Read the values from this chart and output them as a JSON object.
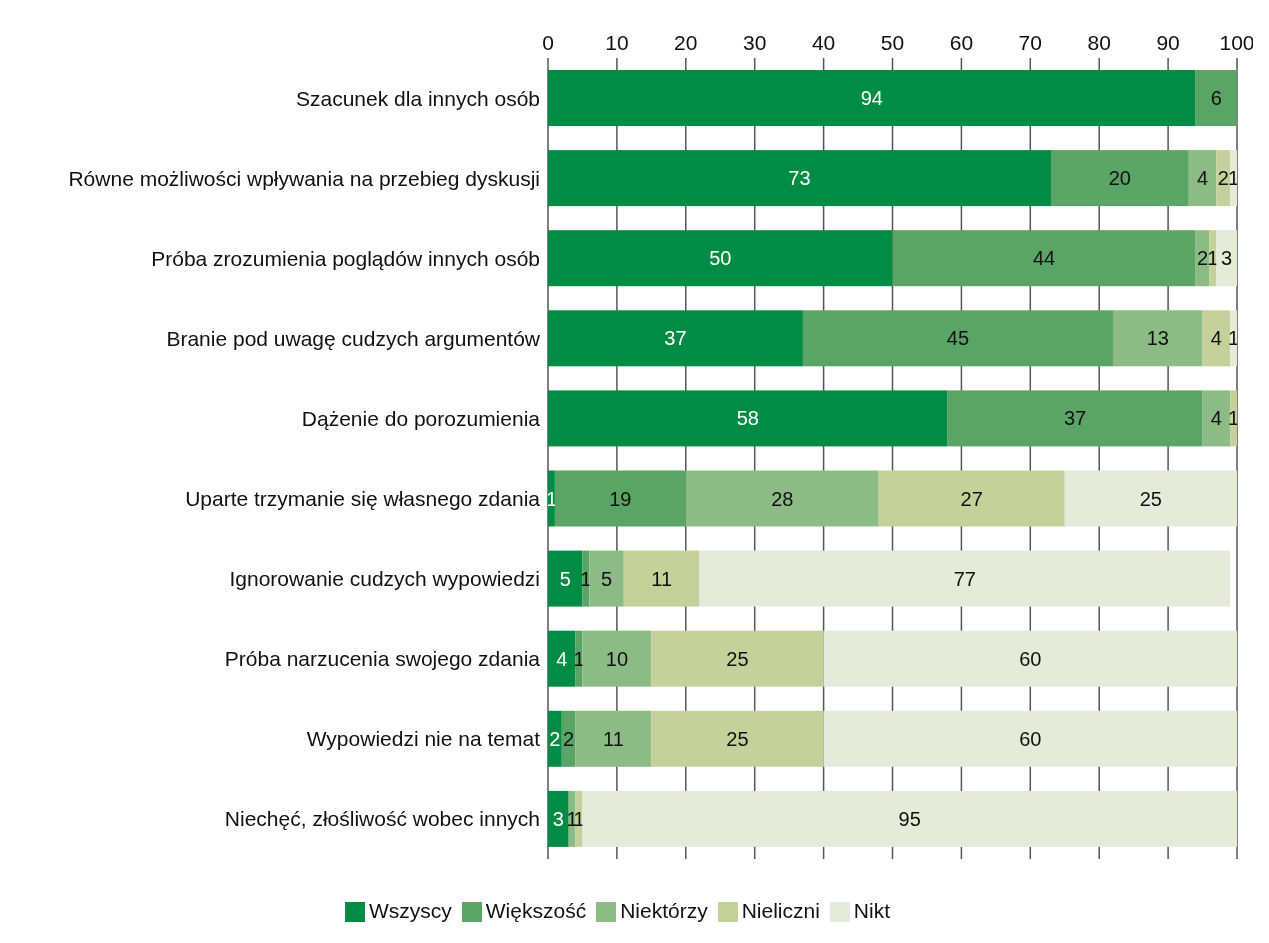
{
  "chart_data": {
    "type": "bar",
    "orientation": "horizontal",
    "stacked": true,
    "categories": [
      "Szacunek dla innych osób",
      "Równe możliwości wpływania na przebieg dyskusji",
      "Próba zrozumienia poglądów innych osób",
      "Branie pod uwagę cudzych argumentów",
      "Dążenie do porozumienia",
      "Uparte trzymanie się własnego zdania",
      "Ignorowanie cudzych wypowiedzi",
      "Próba narzucenia swojego zdania",
      "Wypowiedzi nie na temat",
      "Niechęć, złośliwość wobec innych"
    ],
    "series": [
      {
        "name": "Wszyscy",
        "color": "#008c44",
        "values": [
          94,
          73,
          50,
          37,
          58,
          1,
          5,
          4,
          2,
          3
        ],
        "value_labels": [
          "94",
          "73",
          "50",
          "37",
          "58",
          "1",
          "5",
          "4",
          "2",
          "3"
        ]
      },
      {
        "name": "Większość",
        "color": "#5aa466",
        "values": [
          6,
          20,
          44,
          45,
          37,
          19,
          1,
          1,
          2,
          0
        ],
        "value_labels": [
          "6",
          "20",
          "44",
          "45",
          "37",
          "19",
          "1",
          "1",
          "2",
          null
        ]
      },
      {
        "name": "Niektórzy",
        "color": "#8cbb86",
        "values": [
          0,
          4,
          2,
          13,
          4,
          28,
          5,
          10,
          11,
          1
        ],
        "value_labels": [
          null,
          "4",
          "2",
          "13",
          "4",
          "28",
          "5",
          "10",
          "11",
          "1"
        ]
      },
      {
        "name": "Nieliczni",
        "color": "#c5d19a",
        "values": [
          0,
          2,
          1,
          4,
          1,
          27,
          11,
          25,
          25,
          1
        ],
        "value_labels": [
          null,
          "2",
          "1",
          "4",
          "1",
          "27",
          "11",
          "25",
          "25",
          "1"
        ]
      },
      {
        "name": "Nikt",
        "color": "#e6ead9",
        "values": [
          0,
          1,
          3,
          1,
          0,
          25,
          77,
          60,
          60,
          95
        ],
        "value_labels": [
          null,
          "1",
          "3",
          "1",
          null,
          "25",
          "77",
          "60",
          "60",
          "95"
        ]
      }
    ],
    "xlim": [
      0,
      100
    ],
    "xticks": [
      0,
      10,
      20,
      30,
      40,
      50,
      60,
      70,
      80,
      90,
      100
    ],
    "grid": "x",
    "legend": "bottom"
  }
}
